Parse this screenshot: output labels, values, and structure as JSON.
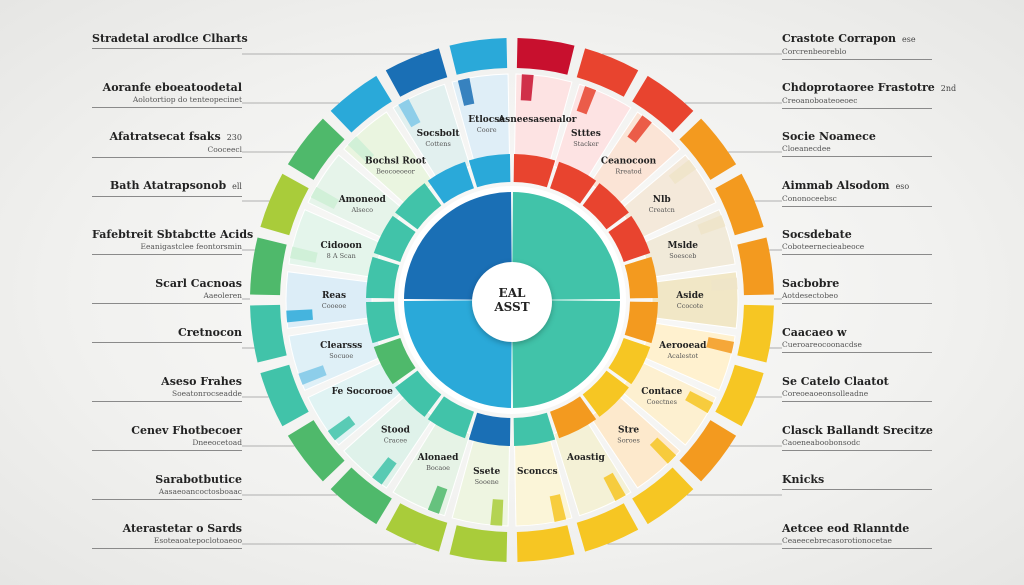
{
  "center": {
    "line1": "EAL",
    "line2": "ASST"
  },
  "colors": {
    "blue": "#1a6fb5",
    "cyan": "#2aa9d9",
    "teal": "#41c3a9",
    "red": "#e8442f",
    "orange": "#f39a1f",
    "yellow": "#f6c623",
    "lime": "#a9cc3a",
    "green": "#4fb96b",
    "crimson": "#c8102e",
    "sky": "#7fc8e8",
    "mint": "#cdeed5",
    "sand": "#efe4c8"
  },
  "outer_callouts_left": [
    {
      "title": "Stradetal arodlce Clharts",
      "sub": ""
    },
    {
      "title": "Aoranfe eboeatoodetal",
      "sub": "Aolotortiop do tenteopecinet"
    },
    {
      "title": "Afatratsecat fsaks",
      "sub": "Cooceecl",
      "num": "230"
    },
    {
      "title": "Bath Atatrapsonob",
      "sub": "",
      "num": "ell"
    },
    {
      "title": "Fafebtreit Sbtabctte Acids",
      "sub": "Eeanigastclee feontorsmin"
    },
    {
      "title": "Scarl Cacnoas",
      "sub": "Aaeoleren"
    },
    {
      "title": "Cretnocon",
      "sub": ""
    },
    {
      "title": "Aseso Frahes",
      "sub": "Soeatonrocseadde"
    },
    {
      "title": "Cenev Fhotbecoer",
      "sub": "Dneeocetoad"
    },
    {
      "title": "Sarabotbutice",
      "sub": "Aasaeoancoctosboaac"
    },
    {
      "title": "Aterastetar o Sards",
      "sub": "Esoteaoatepoclotoaeoo"
    }
  ],
  "outer_callouts_right": [
    {
      "title": "Crastote Corrapon",
      "sub": "Corcrenbeoreblo",
      "num": "ese"
    },
    {
      "title": "Chdoprotaoree Frastotre",
      "sub": "Creoanoboateoeoec",
      "num": "2nd"
    },
    {
      "title": "Socie Noamece",
      "sub": "Cloeanecdee"
    },
    {
      "title": "Aimmab Alsodom",
      "sub": "Cononoceebsc",
      "num": "eso"
    },
    {
      "title": "Socsdebate",
      "sub": "Coboteernecieabeoce"
    },
    {
      "title": "Sacbobre",
      "sub": "Aotdesectobeo"
    },
    {
      "title": "Caacaeo w",
      "sub": "Cueroareocoonacdse"
    },
    {
      "title": "Se Catelo Claatot",
      "sub": "Coreoeaoeonsolleadne"
    },
    {
      "title": "Clasck Ballandt Srecitze",
      "sub": "Caoeneaboobonsodc"
    },
    {
      "title": "Knicks",
      "sub": ""
    },
    {
      "title": "Aetcee eod Rlanntde",
      "sub": "Ceaeecebrecasorotionocetae"
    }
  ],
  "segment_labels": [
    {
      "title": "Asneesasenalor",
      "sub": ""
    },
    {
      "title": "Stttes",
      "sub": "Stacker"
    },
    {
      "title": "Ceanocoon",
      "sub": "Rreatod"
    },
    {
      "title": "Nlb",
      "sub": "Creatcn"
    },
    {
      "title": "Mslde",
      "sub": "Soesceb"
    },
    {
      "title": "Aside",
      "sub": "Ccocote"
    },
    {
      "title": "Aerooead",
      "sub": "Acalestot"
    },
    {
      "title": "Contace",
      "sub": "Coectnes"
    },
    {
      "title": "Stre",
      "sub": "Soroes"
    },
    {
      "title": "Aoastig",
      "sub": ""
    },
    {
      "title": "Sconccs",
      "sub": ""
    },
    {
      "title": "Ssete",
      "sub": "Sooene"
    },
    {
      "title": "Alonaed",
      "sub": "Bocaoe"
    },
    {
      "title": "Stood",
      "sub": "Cracee"
    },
    {
      "title": "Fe Socorooe",
      "sub": ""
    },
    {
      "title": "Clearsss",
      "sub": "Socuoe"
    },
    {
      "title": "Reas",
      "sub": "Cooeoe"
    },
    {
      "title": "Cidooon",
      "sub": "8 A Scan"
    },
    {
      "title": "Amoneod",
      "sub": "Alseco"
    },
    {
      "title": "Bochsl Root",
      "sub": "Beocoeoeor"
    },
    {
      "title": "Socsbolt",
      "sub": "Cottens"
    },
    {
      "title": "Etlocse",
      "sub": "Coore"
    }
  ]
}
